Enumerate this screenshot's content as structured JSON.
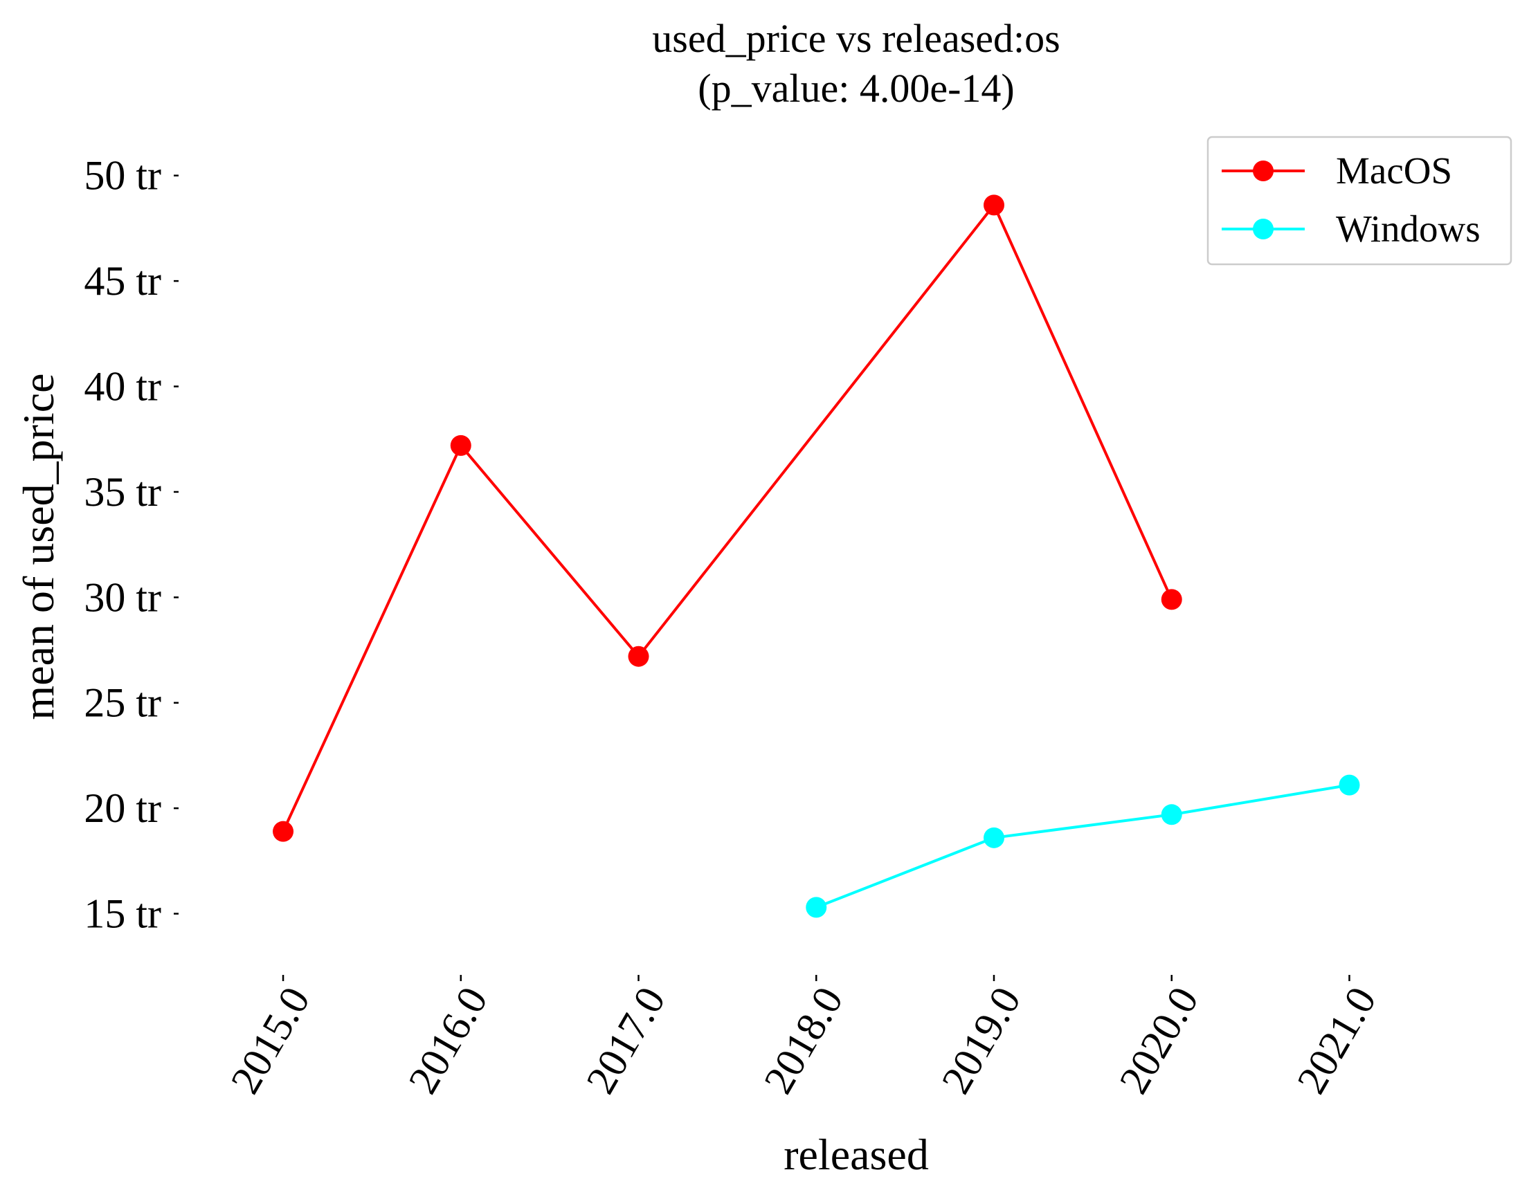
{
  "chart_data": {
    "type": "line",
    "title": "used_price vs released:os",
    "subtitle": "(p_value: 4.00e-14)",
    "xlabel": "released",
    "ylabel": "mean of used_price",
    "x": [
      2015,
      2016,
      2017,
      2018,
      2019,
      2020,
      2021
    ],
    "x_tick_labels": [
      "2015.0",
      "2016.0",
      "2017.0",
      "2018.0",
      "2019.0",
      "2020.0",
      "2021.0"
    ],
    "y_ticks": [
      15,
      20,
      25,
      30,
      35,
      40,
      45,
      50
    ],
    "y_tick_labels": [
      "15 tr",
      "20 tr",
      "25 tr",
      "30 tr",
      "35 tr",
      "40 tr",
      "45 tr",
      "50 tr"
    ],
    "y_unit": "tr",
    "xlim": [
      2014.4,
      2021.45
    ],
    "ylim": [
      12,
      51.5
    ],
    "grid": false,
    "legend_position": "top-right",
    "series": [
      {
        "name": "MacOS",
        "color": "#ff0000",
        "x": [
          2015,
          2016,
          2017,
          2019,
          2020
        ],
        "values": [
          18.9,
          37.2,
          27.2,
          48.6,
          29.9
        ]
      },
      {
        "name": "Windows",
        "color": "#00ffff",
        "x": [
          2018,
          2019,
          2020,
          2021
        ],
        "values": [
          15.3,
          18.6,
          19.7,
          21.1
        ]
      }
    ]
  }
}
